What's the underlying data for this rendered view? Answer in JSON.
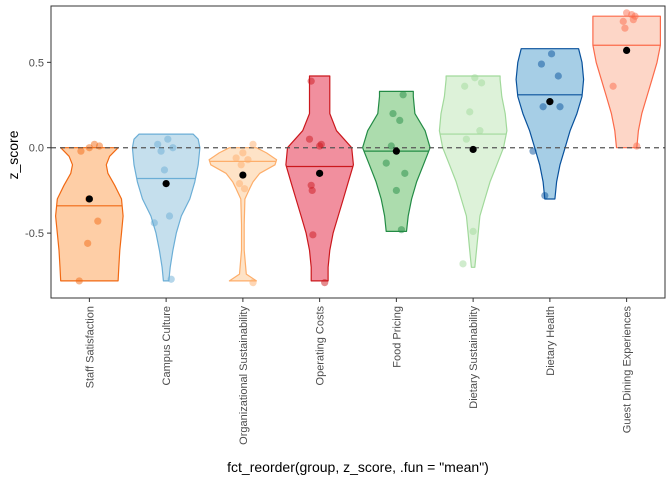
{
  "chart_data": {
    "type": "violin",
    "xlabel": "fct_reorder(group, z_score, .fun = \"mean\")",
    "ylabel": "z_score",
    "ylim": [
      -0.88,
      0.83
    ],
    "y_ticks": [
      -0.5,
      0.0,
      0.5
    ],
    "y_tick_labels": [
      "-0.5",
      "0.0",
      "0.5"
    ],
    "reference_line": {
      "y": 0.0,
      "style": "dashed"
    },
    "grid": false,
    "legend": "none",
    "categories": [
      "Staff Satisfaction",
      "Campus Culture",
      "Organizational Sustainability",
      "Operating Costs",
      "Food Pricing",
      "Dietary Sustainability",
      "Dietary Health",
      "Guest Dining Experiences"
    ],
    "groups": [
      {
        "category": "Staff Satisfaction",
        "fill": "#fdae6b",
        "stroke": "#f16913",
        "mean": -0.3,
        "median": -0.34,
        "violin": {
          "min": -0.78,
          "max": 0.0,
          "profile": [
            [
              -0.78,
              0.85
            ],
            [
              -0.7,
              0.87
            ],
            [
              -0.6,
              0.9
            ],
            [
              -0.5,
              0.95
            ],
            [
              -0.4,
              1.0
            ],
            [
              -0.3,
              0.95
            ],
            [
              -0.22,
              0.75
            ],
            [
              -0.15,
              0.55
            ],
            [
              -0.1,
              0.5
            ],
            [
              -0.05,
              0.6
            ],
            [
              0.0,
              0.85
            ]
          ]
        },
        "points": [
          [
            -0.3,
            -0.78
          ],
          [
            -0.05,
            -0.56
          ],
          [
            -0.02,
            -0.3
          ],
          [
            0.25,
            -0.43
          ],
          [
            -0.25,
            -0.02
          ],
          [
            0.0,
            0.0
          ],
          [
            0.15,
            0.02
          ],
          [
            0.3,
            0.01
          ]
        ]
      },
      {
        "category": "Campus Culture",
        "fill": "#9ecae1",
        "stroke": "#6baed6",
        "mean": -0.21,
        "median": -0.18,
        "violin": {
          "min": -0.78,
          "max": 0.08,
          "profile": [
            [
              -0.78,
              0.08
            ],
            [
              -0.7,
              0.12
            ],
            [
              -0.6,
              0.2
            ],
            [
              -0.5,
              0.3
            ],
            [
              -0.4,
              0.45
            ],
            [
              -0.3,
              0.7
            ],
            [
              -0.2,
              0.85
            ],
            [
              -0.1,
              0.95
            ],
            [
              0.0,
              1.0
            ],
            [
              0.05,
              0.95
            ],
            [
              0.08,
              0.8
            ]
          ]
        },
        "points": [
          [
            -0.35,
            -0.44
          ],
          [
            -0.15,
            -0.02
          ],
          [
            -0.05,
            -0.13
          ],
          [
            0.05,
            0.05
          ],
          [
            0.1,
            -0.4
          ],
          [
            0.15,
            -0.77
          ],
          [
            -0.25,
            0.02
          ],
          [
            0.2,
            0.0
          ]
        ]
      },
      {
        "category": "Organizational Sustainability",
        "fill": "#fdd0a2",
        "stroke": "#fdae6b",
        "mean": -0.16,
        "median": -0.08,
        "violin": {
          "min": -0.78,
          "max": 0.0,
          "profile": [
            [
              -0.78,
              0.4
            ],
            [
              -0.74,
              0.1
            ],
            [
              -0.6,
              0.04
            ],
            [
              -0.45,
              0.04
            ],
            [
              -0.3,
              0.06
            ],
            [
              -0.24,
              0.2
            ],
            [
              -0.2,
              0.3
            ],
            [
              -0.15,
              0.5
            ],
            [
              -0.1,
              0.95
            ],
            [
              -0.07,
              1.0
            ],
            [
              -0.03,
              0.7
            ],
            [
              0.0,
              0.4
            ]
          ]
        },
        "points": [
          [
            0.3,
            -0.79
          ],
          [
            0.05,
            -0.24
          ],
          [
            -0.1,
            -0.21
          ],
          [
            0.15,
            -0.07
          ],
          [
            -0.2,
            -0.06
          ],
          [
            0.0,
            -0.03
          ],
          [
            0.3,
            0.02
          ],
          [
            -0.05,
            -0.1
          ]
        ]
      },
      {
        "category": "Operating Costs",
        "fill": "#e7445e",
        "stroke": "#cb181d",
        "mean": -0.15,
        "median": -0.11,
        "violin": {
          "min": -0.78,
          "max": 0.42,
          "profile": [
            [
              -0.78,
              0.25
            ],
            [
              -0.7,
              0.25
            ],
            [
              -0.6,
              0.3
            ],
            [
              -0.5,
              0.4
            ],
            [
              -0.4,
              0.55
            ],
            [
              -0.3,
              0.7
            ],
            [
              -0.2,
              0.85
            ],
            [
              -0.1,
              1.0
            ],
            [
              0.0,
              0.95
            ],
            [
              0.1,
              0.5
            ],
            [
              0.2,
              0.3
            ],
            [
              0.3,
              0.3
            ],
            [
              0.4,
              0.3
            ],
            [
              0.42,
              0.3
            ]
          ]
        },
        "points": [
          [
            -0.2,
            -0.51
          ],
          [
            -0.25,
            -0.22
          ],
          [
            -0.22,
            -0.25
          ],
          [
            -0.3,
            0.05
          ],
          [
            0.05,
            0.02
          ],
          [
            0.0,
            0.01
          ],
          [
            -0.25,
            0.39
          ],
          [
            0.15,
            -0.79
          ]
        ]
      },
      {
        "category": "Food Pricing",
        "fill": "#74c476",
        "stroke": "#238b45",
        "mean": -0.02,
        "median": -0.02,
        "violin": {
          "min": -0.49,
          "max": 0.33,
          "profile": [
            [
              -0.49,
              0.3
            ],
            [
              -0.4,
              0.35
            ],
            [
              -0.3,
              0.45
            ],
            [
              -0.2,
              0.6
            ],
            [
              -0.1,
              0.8
            ],
            [
              0.0,
              1.0
            ],
            [
              0.1,
              0.85
            ],
            [
              0.2,
              0.55
            ],
            [
              0.3,
              0.5
            ],
            [
              0.33,
              0.5
            ]
          ]
        },
        "points": [
          [
            -0.3,
            -0.09
          ],
          [
            -0.15,
            0.01
          ],
          [
            0.0,
            -0.25
          ],
          [
            0.15,
            -0.48
          ],
          [
            0.1,
            0.16
          ],
          [
            0.2,
            0.31
          ],
          [
            0.25,
            -0.15
          ],
          [
            -0.1,
            0.2
          ]
        ]
      },
      {
        "category": "Dietary Sustainability",
        "fill": "#c7e9c0",
        "stroke": "#a1d99b",
        "mean": -0.01,
        "median": 0.08,
        "violin": {
          "min": -0.7,
          "max": 0.42,
          "profile": [
            [
              -0.7,
              0.05
            ],
            [
              -0.6,
              0.1
            ],
            [
              -0.5,
              0.15
            ],
            [
              -0.4,
              0.2
            ],
            [
              -0.3,
              0.35
            ],
            [
              -0.2,
              0.5
            ],
            [
              -0.1,
              0.7
            ],
            [
              0.0,
              0.9
            ],
            [
              0.1,
              1.0
            ],
            [
              0.2,
              0.95
            ],
            [
              0.3,
              0.85
            ],
            [
              0.4,
              0.8
            ],
            [
              0.42,
              0.8
            ]
          ]
        },
        "points": [
          [
            -0.3,
            -0.68
          ],
          [
            0.0,
            -0.49
          ],
          [
            -0.2,
            0.05
          ],
          [
            -0.1,
            0.21
          ],
          [
            0.05,
            0.41
          ],
          [
            0.2,
            0.1
          ],
          [
            0.25,
            0.38
          ],
          [
            -0.25,
            0.36
          ]
        ]
      },
      {
        "category": "Dietary Health",
        "fill": "#6baed6",
        "stroke": "#08519c",
        "mean": 0.27,
        "median": 0.31,
        "violin": {
          "min": -0.3,
          "max": 0.58,
          "profile": [
            [
              -0.3,
              0.15
            ],
            [
              -0.2,
              0.2
            ],
            [
              -0.1,
              0.3
            ],
            [
              0.0,
              0.45
            ],
            [
              0.1,
              0.6
            ],
            [
              0.2,
              0.8
            ],
            [
              0.3,
              0.95
            ],
            [
              0.4,
              1.0
            ],
            [
              0.5,
              0.95
            ],
            [
              0.58,
              0.85
            ]
          ]
        },
        "points": [
          [
            -0.15,
            -0.28
          ],
          [
            -0.5,
            -0.02
          ],
          [
            -0.2,
            0.24
          ],
          [
            0.0,
            0.27
          ],
          [
            0.3,
            0.24
          ],
          [
            0.25,
            0.42
          ],
          [
            -0.25,
            0.49
          ],
          [
            0.05,
            0.55
          ]
        ]
      },
      {
        "category": "Guest Dining Experiences",
        "fill": "#fcbba1",
        "stroke": "#fb6a4a",
        "mean": 0.57,
        "median": 0.6,
        "violin": {
          "min": 0.0,
          "max": 0.77,
          "profile": [
            [
              0.0,
              0.3
            ],
            [
              0.1,
              0.35
            ],
            [
              0.2,
              0.45
            ],
            [
              0.3,
              0.6
            ],
            [
              0.4,
              0.75
            ],
            [
              0.5,
              0.9
            ],
            [
              0.6,
              1.0
            ],
            [
              0.7,
              1.0
            ],
            [
              0.77,
              1.0
            ]
          ]
        },
        "points": [
          [
            -0.4,
            0.36
          ],
          [
            -0.05,
            0.7
          ],
          [
            0.0,
            0.79
          ],
          [
            0.2,
            0.75
          ],
          [
            0.25,
            0.77
          ],
          [
            0.3,
            0.01
          ],
          [
            0.15,
            0.78
          ],
          [
            -0.1,
            0.74
          ]
        ]
      }
    ]
  }
}
